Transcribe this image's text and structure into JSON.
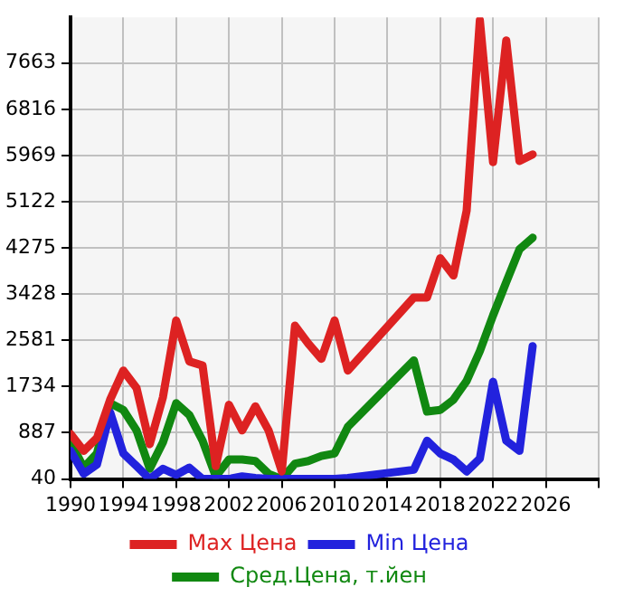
{
  "chart_data": {
    "type": "line",
    "x": [
      1990,
      1991,
      1992,
      1993,
      1994,
      1995,
      1996,
      1997,
      1998,
      1999,
      2000,
      2001,
      2002,
      2003,
      2004,
      2005,
      2006,
      2007,
      2008,
      2009,
      2010,
      2011,
      2016,
      2017,
      2018,
      2019,
      2020,
      2021,
      2022,
      2023,
      2024,
      2025
    ],
    "series": [
      {
        "name": "Max Цена",
        "color": "#dd2222",
        "values": [
          866,
          557,
          790,
          1493,
          2027,
          1709,
          678,
          1540,
          2945,
          2195,
          2120,
          276,
          1400,
          931,
          1372,
          931,
          180,
          2850,
          2524,
          2243,
          2945,
          2027,
          3367,
          3367,
          4086,
          3770,
          4958,
          8450,
          5847,
          8077,
          5868,
          5989
        ]
      },
      {
        "name": "Min Цена",
        "color": "#2222dd",
        "values": [
          557,
          136,
          304,
          1260,
          509,
          276,
          40,
          228,
          116,
          248,
          40,
          40,
          40,
          88,
          60,
          40,
          40,
          40,
          40,
          40,
          40,
          60,
          209,
          742,
          509,
          397,
          180,
          416,
          1822,
          742,
          557,
          2476
        ]
      },
      {
        "name": "Сред.Цена, т.йен",
        "color": "#118811",
        "values": [
          714,
          248,
          509,
          1428,
          1305,
          931,
          228,
          714,
          1428,
          1212,
          742,
          88,
          397,
          397,
          369,
          136,
          40,
          321,
          369,
          462,
          509,
          996,
          2215,
          1276,
          1305,
          1493,
          1838,
          2383,
          3038,
          3648,
          4250,
          4463
        ]
      }
    ],
    "xlim": [
      1990,
      2030
    ],
    "xticks": [
      1990,
      1994,
      1998,
      2002,
      2006,
      2010,
      2014,
      2018,
      2022,
      2026,
      {
        "value": 2030,
        "label": null
      }
    ],
    "ylim": [
      40,
      8500
    ],
    "yticks": [
      40,
      887,
      1734,
      2581,
      3428,
      4275,
      5122,
      5969,
      6816,
      7663
    ],
    "grid": true,
    "legend": "bottom",
    "marker": "none",
    "line_style": "solid"
  }
}
